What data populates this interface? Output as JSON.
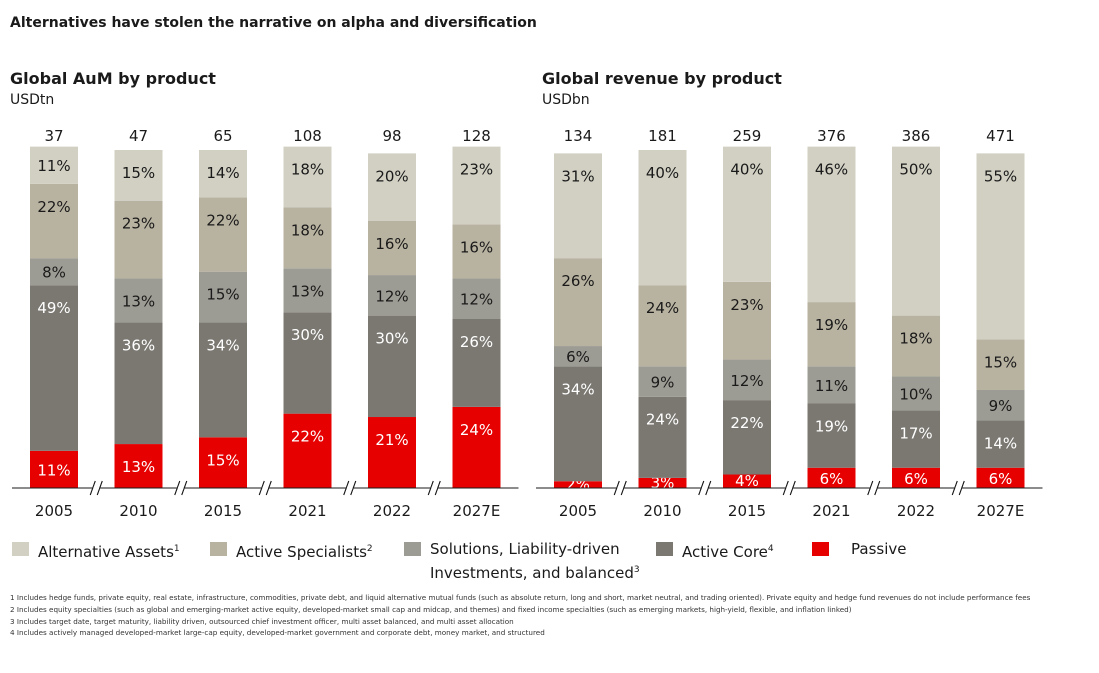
{
  "headline": "Alternatives have stolen the narrative on alpha and diversification",
  "colors": {
    "alternative_assets": "#d2d0c3",
    "active_specialists": "#b8b2a0",
    "solutions": "#9d9c94",
    "active_core": "#7b7872",
    "passive": "#e60000"
  },
  "legend": [
    {
      "key": "alternative_assets",
      "label": "Alternative Assets",
      "sup": "1"
    },
    {
      "key": "active_specialists",
      "label": "Active Specialists",
      "sup": "2"
    },
    {
      "key": "solutions",
      "label": "Solutions, Liability-driven",
      "label2": "Investments, and balanced",
      "sup": "3"
    },
    {
      "key": "active_core",
      "label": "Active Core",
      "sup": "4"
    },
    {
      "key": "passive",
      "label": "Passive",
      "sup": ""
    }
  ],
  "footnotes": [
    "1 Includes hedge funds, private equity, real estate, infrastructure, commodities, private debt, and liquid alternative mutual funds (such as absolute return, long and short, market neutral, and trading oriented). Private equity and hedge fund revenues do not include performance fees",
    "2 Includes equity specialties (such as global and emerging-market active equity, developed-market small cap and midcap, and themes) and fixed income specialties (such as emerging markets, high-yield, flexible, and inflation linked)",
    "3 Includes target date, target maturity, liability driven, outsourced chief investment officer, multi asset balanced, and multi asset allocation",
    "4 Includes actively managed developed-market large-cap equity, developed-market government and corporate debt, money market, and structured"
  ],
  "chart_data": [
    {
      "type": "bar",
      "stacked": true,
      "normalized": true,
      "title": "Global AuM by product",
      "unit": "USDtn",
      "categories": [
        "2005",
        "2010",
        "2015",
        "2021",
        "2022",
        "2027E"
      ],
      "totals": [
        "37",
        "47",
        "65",
        "108",
        "98",
        "128"
      ],
      "axis_breaks": true,
      "series": [
        {
          "key": "passive",
          "values": [
            11,
            13,
            15,
            22,
            21,
            24
          ],
          "labels": [
            "11%",
            "13%",
            "15%",
            "22%",
            "21%",
            "24%"
          ]
        },
        {
          "key": "active_core",
          "values": [
            49,
            36,
            34,
            30,
            30,
            26
          ],
          "labels": [
            "49%",
            "36%",
            "34%",
            "30%",
            "30%",
            "26%"
          ]
        },
        {
          "key": "solutions",
          "values": [
            8,
            13,
            15,
            13,
            12,
            12
          ],
          "labels": [
            "8%",
            "13%",
            "15%",
            "13%",
            "12%",
            "12%"
          ]
        },
        {
          "key": "active_specialists",
          "values": [
            22,
            23,
            22,
            18,
            16,
            16
          ],
          "labels": [
            "22%",
            "23%",
            "22%",
            "18%",
            "16%",
            "16%"
          ]
        },
        {
          "key": "alternative_assets",
          "values": [
            11,
            15,
            14,
            18,
            20,
            23
          ],
          "labels": [
            "11%",
            "15%",
            "14%",
            "18%",
            "20%",
            "23%"
          ]
        }
      ]
    },
    {
      "type": "bar",
      "stacked": true,
      "normalized": true,
      "title": "Global revenue by product",
      "unit": "USDbn",
      "categories": [
        "2005",
        "2010",
        "2015",
        "2021",
        "2022",
        "2027E"
      ],
      "totals": [
        "134",
        "181",
        "259",
        "376",
        "386",
        "471"
      ],
      "axis_breaks": true,
      "series": [
        {
          "key": "passive",
          "values": [
            2,
            3,
            4,
            6,
            6,
            6
          ],
          "labels": [
            "2%",
            "3%",
            "4%",
            "6%",
            "6%",
            "6%"
          ]
        },
        {
          "key": "active_core",
          "values": [
            34,
            24,
            22,
            19,
            17,
            14
          ],
          "labels": [
            "34%",
            "24%",
            "22%",
            "19%",
            "17%",
            "14%"
          ]
        },
        {
          "key": "solutions",
          "values": [
            6,
            9,
            12,
            11,
            10,
            9
          ],
          "labels": [
            "6%",
            "9%",
            "12%",
            "11%",
            "10%",
            "9%"
          ]
        },
        {
          "key": "active_specialists",
          "values": [
            26,
            24,
            23,
            19,
            18,
            15
          ],
          "labels": [
            "26%",
            "24%",
            "23%",
            "19%",
            "18%",
            "15%"
          ]
        },
        {
          "key": "alternative_assets",
          "values": [
            31,
            40,
            40,
            46,
            50,
            55
          ],
          "labels": [
            "31%",
            "40%",
            "40%",
            "46%",
            "50%",
            "55%"
          ]
        }
      ]
    }
  ]
}
